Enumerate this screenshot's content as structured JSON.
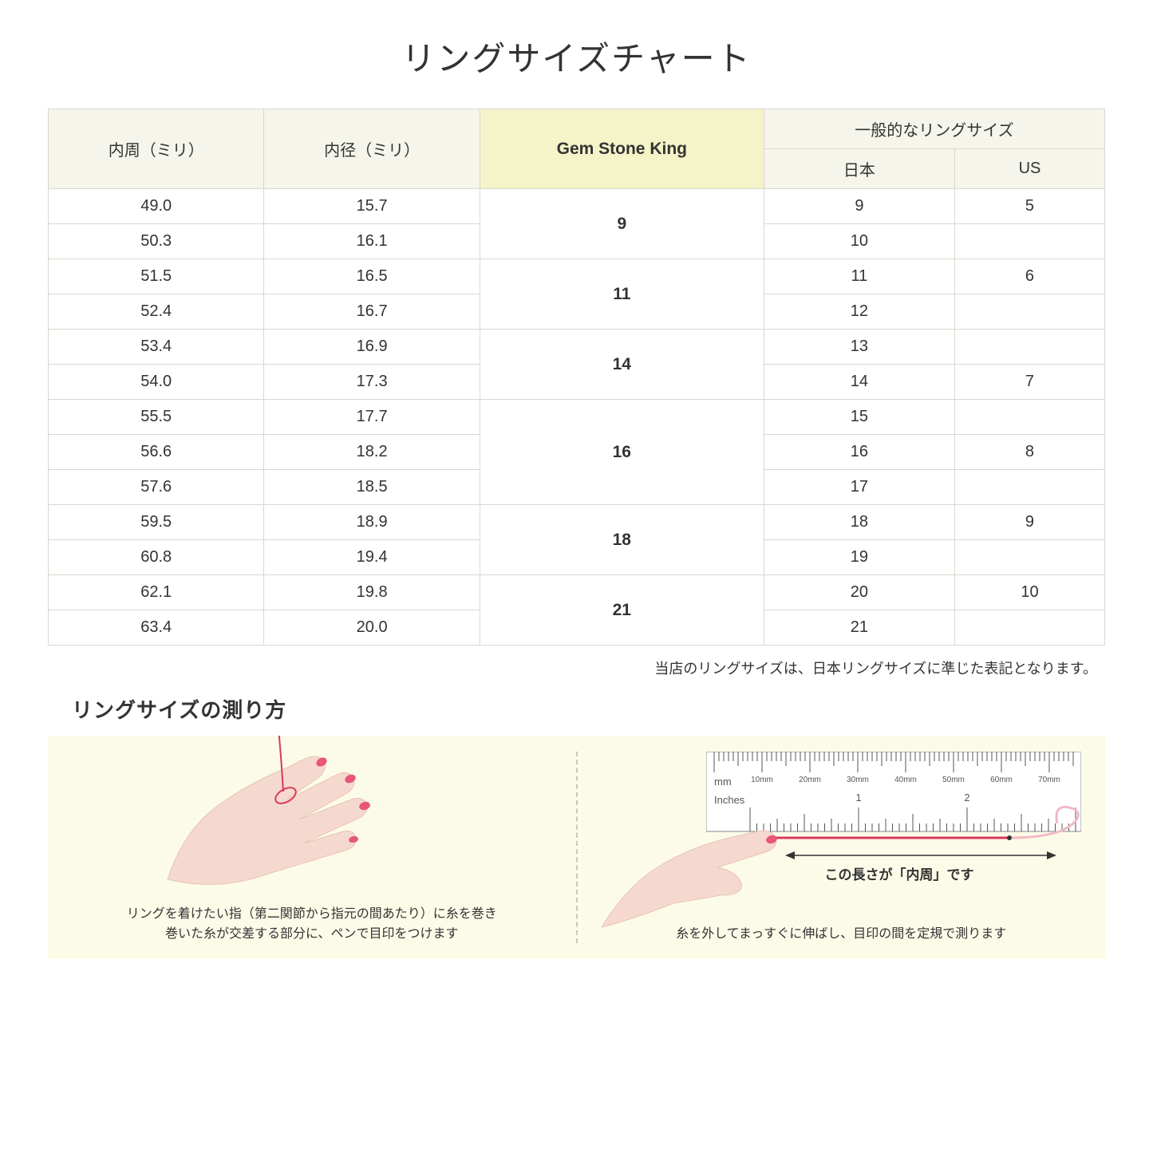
{
  "title": "リングサイズチャート",
  "table": {
    "headers": {
      "circumference": "内周（ミリ）",
      "diameter": "内径（ミリ）",
      "gem": "Gem Stone King",
      "general": "一般的なリングサイズ",
      "japan": "日本",
      "us": "US"
    },
    "rows": [
      {
        "circ": "49.0",
        "diam": "15.7",
        "gem": "9",
        "gem_span": 2,
        "jp": "9",
        "us": "5"
      },
      {
        "circ": "50.3",
        "diam": "16.1",
        "jp": "10",
        "us": ""
      },
      {
        "circ": "51.5",
        "diam": "16.5",
        "gem": "11",
        "gem_span": 2,
        "jp": "11",
        "us": "6"
      },
      {
        "circ": "52.4",
        "diam": "16.7",
        "jp": "12",
        "us": ""
      },
      {
        "circ": "53.4",
        "diam": "16.9",
        "gem": "14",
        "gem_span": 2,
        "jp": "13",
        "us": ""
      },
      {
        "circ": "54.0",
        "diam": "17.3",
        "jp": "14",
        "us": "7"
      },
      {
        "circ": "55.5",
        "diam": "17.7",
        "gem": "16",
        "gem_span": 3,
        "jp": "15",
        "us": ""
      },
      {
        "circ": "56.6",
        "diam": "18.2",
        "jp": "16",
        "us": "8"
      },
      {
        "circ": "57.6",
        "diam": "18.5",
        "jp": "17",
        "us": ""
      },
      {
        "circ": "59.5",
        "diam": "18.9",
        "gem": "18",
        "gem_span": 2,
        "jp": "18",
        "us": "9"
      },
      {
        "circ": "60.8",
        "diam": "19.4",
        "jp": "19",
        "us": ""
      },
      {
        "circ": "62.1",
        "diam": "19.8",
        "gem": "21",
        "gem_span": 2,
        "jp": "20",
        "us": "10"
      },
      {
        "circ": "63.4",
        "diam": "20.0",
        "jp": "21",
        "us": ""
      }
    ]
  },
  "note": "当店のリングサイズは、日本リングサイズに準じた表記となります。",
  "subtitle": "リングサイズの測り方",
  "howto": {
    "left_text": "リングを着けたい指（第二関節から指元の間あたり）に糸を巻き\n巻いた糸が交差する部分に、ペンで目印をつけます",
    "right_text": "糸を外してまっすぐに伸ばし、目印の間を定規で測ります",
    "ruler_label": "この長さが「内周」です",
    "ruler_ticks": [
      "10mm",
      "20mm",
      "30mm",
      "40mm",
      "50mm",
      "60mm",
      "70mm"
    ],
    "ruler_unit_mm": "mm",
    "ruler_unit_in": "Inches",
    "ruler_in_ticks": [
      "1",
      "2"
    ]
  },
  "colors": {
    "header_bg": "#f5f5ec",
    "gem_bg": "#f4f4c8",
    "border": "#d8d8d0",
    "howto_bg": "#fcfbe8",
    "hand_fill": "#f5d9ce",
    "nail": "#e8567a",
    "thread": "#d83a5a",
    "pink_curve": "#f2b8c6"
  }
}
